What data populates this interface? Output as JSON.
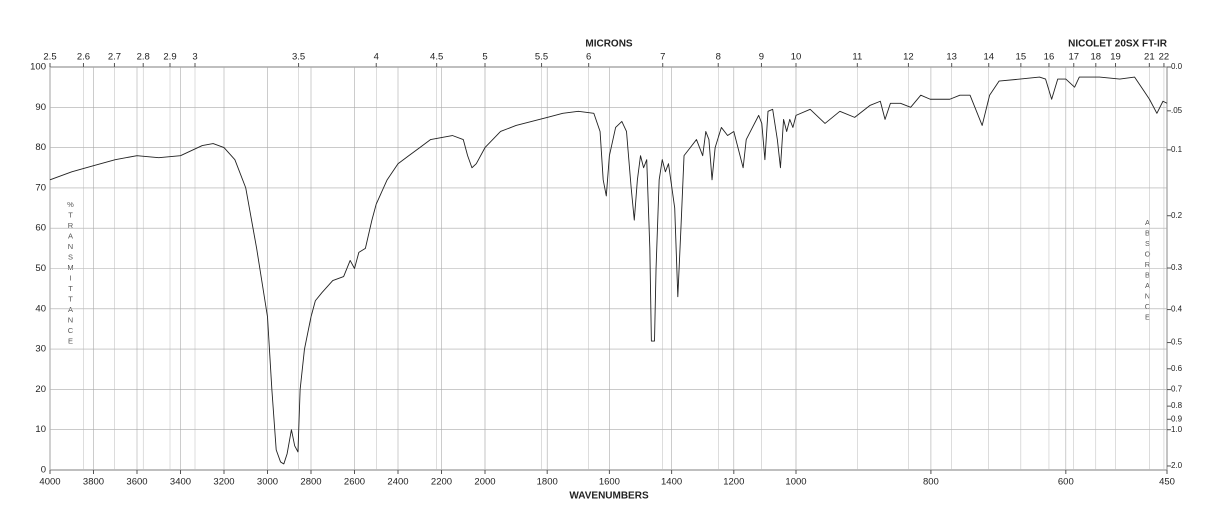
{
  "chart_data": {
    "type": "line",
    "title": "NICOLET 20SX FT-IR",
    "xlabel": "WAVENUMBERS",
    "x2label": "MICRONS",
    "ylabel": "%TRANSMITTANCE",
    "y2label": "ABSORBANCE",
    "xlim": [
      4000,
      450
    ],
    "xscale": "piecewise-linear",
    "xbreaks": [
      2000,
      1000
    ],
    "xticks": [
      4000,
      3800,
      3600,
      3400,
      3200,
      3000,
      2800,
      2600,
      2400,
      2200,
      2000,
      1800,
      1600,
      1400,
      1200,
      1000,
      800,
      600,
      450
    ],
    "x2scale": "reciprocal",
    "x2ticks": [
      2.5,
      2.6,
      2.7,
      2.8,
      2.9,
      3,
      3.5,
      4,
      4.5,
      5,
      5.5,
      6,
      7,
      8,
      9,
      10,
      11,
      12,
      13,
      14,
      15,
      16,
      17,
      18,
      19,
      21,
      22
    ],
    "ylim": [
      0,
      100
    ],
    "yticks": [
      0,
      10,
      20,
      30,
      40,
      50,
      60,
      70,
      80,
      90,
      100
    ],
    "y2scale": "absorbance",
    "y2ticks": [
      {
        "value": 0,
        "label": "0.0"
      },
      {
        "value": 0.05,
        "label": ".05"
      },
      0.1,
      0.2,
      0.3,
      0.4,
      0.5,
      0.6,
      0.7,
      0.8,
      0.9,
      {
        "value": 1,
        "label": "1.0"
      },
      {
        "value": 2,
        "label": "2.0"
      }
    ],
    "grid": true,
    "color": "#222222",
    "x": [
      4000,
      3900,
      3800,
      3700,
      3600,
      3500,
      3400,
      3300,
      3250,
      3200,
      3150,
      3100,
      3050,
      3000,
      2980,
      2960,
      2940,
      2925,
      2910,
      2890,
      2875,
      2860,
      2850,
      2830,
      2800,
      2780,
      2750,
      2700,
      2650,
      2620,
      2600,
      2580,
      2550,
      2520,
      2500,
      2450,
      2400,
      2350,
      2300,
      2250,
      2200,
      2150,
      2100,
      2080,
      2060,
      2040,
      2000,
      1950,
      1900,
      1850,
      1800,
      1750,
      1700,
      1650,
      1630,
      1620,
      1610,
      1600,
      1580,
      1560,
      1545,
      1530,
      1520,
      1510,
      1500,
      1490,
      1480,
      1470,
      1465,
      1455,
      1450,
      1440,
      1430,
      1420,
      1410,
      1390,
      1380,
      1370,
      1360,
      1340,
      1320,
      1300,
      1290,
      1280,
      1270,
      1260,
      1240,
      1220,
      1200,
      1180,
      1170,
      1160,
      1140,
      1120,
      1110,
      1100,
      1090,
      1075,
      1060,
      1050,
      1040,
      1030,
      1020,
      1010,
      1000,
      979,
      957,
      935,
      913,
      890,
      875,
      868,
      860,
      845,
      830,
      815,
      801,
      772,
      757,
      742,
      724,
      713,
      699,
      668,
      639,
      630,
      621,
      612,
      600,
      587,
      580,
      550,
      520,
      498,
      476,
      465,
      456,
      450
    ],
    "values": [
      72,
      74,
      75.5,
      77,
      78,
      77.5,
      78,
      80.5,
      81,
      80,
      77,
      70,
      55,
      38,
      20,
      5,
      2,
      1.5,
      4,
      10,
      6,
      4.5,
      20,
      30,
      38,
      42,
      44,
      47,
      48,
      52,
      50,
      54,
      55,
      62,
      66,
      72,
      76,
      78,
      80,
      82,
      82.5,
      83,
      82,
      78,
      75,
      76,
      80,
      84,
      85.5,
      86.5,
      87.5,
      88.5,
      89,
      88.5,
      84,
      72,
      68,
      78,
      85,
      86.5,
      84,
      70,
      62,
      72,
      78,
      75,
      77,
      55,
      32,
      32,
      50,
      72,
      77,
      74,
      76,
      65,
      43,
      60,
      78,
      80,
      82,
      78,
      84,
      82,
      72,
      80,
      85,
      83,
      84,
      78,
      75,
      82,
      85,
      88,
      86,
      77,
      89,
      89.5,
      82,
      75,
      87,
      84,
      87,
      85,
      88,
      89.5,
      86,
      89,
      87.5,
      90.5,
      91.5,
      87,
      91,
      91,
      90,
      93,
      92,
      92,
      93,
      93,
      85.5,
      93,
      96.5,
      97,
      97.5,
      97,
      92,
      97,
      97,
      95,
      97.5,
      97.5,
      97,
      97.5,
      92,
      88.5,
      91.5,
      91
    ]
  }
}
